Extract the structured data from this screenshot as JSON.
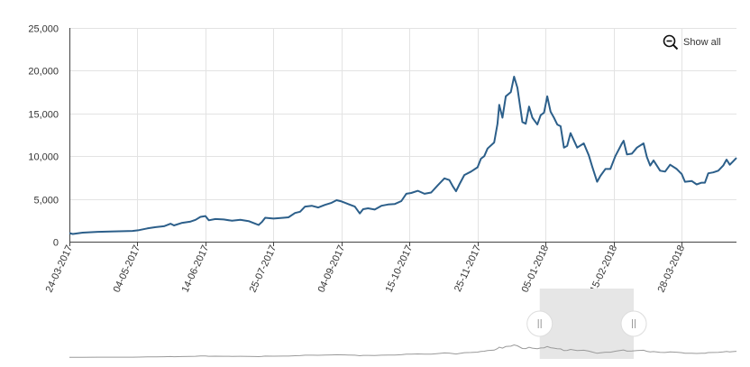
{
  "toolbar": {
    "show_all_label": "Show all"
  },
  "navigator": {
    "selection_start": 0.705,
    "selection_end": 0.846
  },
  "colors": {
    "line": "#2c5f8a",
    "grid": "#e3e3e3",
    "axis": "#444444",
    "navigator_line": "#9a9a9a",
    "navigator_selection": "#e6e6e6"
  },
  "chart_data": {
    "type": "line",
    "title": "",
    "xlabel": "",
    "ylabel": "",
    "ylim": [
      0,
      25000
    ],
    "xlim": [
      "2017-03-24",
      "2018-04-30"
    ],
    "y_ticks": [
      0,
      5000,
      10000,
      15000,
      20000,
      25000
    ],
    "y_tick_labels": [
      "0",
      "5,000",
      "10,000",
      "15,000",
      "20,000",
      "25,000"
    ],
    "x_ticks": [
      "2017-03-24",
      "2017-05-04",
      "2017-06-14",
      "2017-07-25",
      "2017-09-04",
      "2017-10-15",
      "2017-11-25",
      "2018-01-05",
      "2018-02-15",
      "2018-03-28"
    ],
    "x_tick_labels": [
      "24-03-2017",
      "04-05-2017",
      "14-06-2017",
      "25-07-2017",
      "04-09-2017",
      "15-10-2017",
      "25-11-2017",
      "05-01-2018",
      "15-02-2018",
      "28-03-2018"
    ],
    "grid": true,
    "legend": "none",
    "series": [
      {
        "points": [
          [
            "2017-03-24",
            1000
          ],
          [
            "2017-03-26",
            900
          ],
          [
            "2017-04-01",
            1050
          ],
          [
            "2017-04-10",
            1150
          ],
          [
            "2017-04-20",
            1200
          ],
          [
            "2017-05-01",
            1250
          ],
          [
            "2017-05-05",
            1350
          ],
          [
            "2017-05-10",
            1550
          ],
          [
            "2017-05-15",
            1700
          ],
          [
            "2017-05-20",
            1800
          ],
          [
            "2017-05-24",
            2100
          ],
          [
            "2017-05-26",
            1900
          ],
          [
            "2017-05-31",
            2200
          ],
          [
            "2017-06-05",
            2350
          ],
          [
            "2017-06-08",
            2550
          ],
          [
            "2017-06-11",
            2900
          ],
          [
            "2017-06-14",
            3000
          ],
          [
            "2017-06-16",
            2500
          ],
          [
            "2017-06-20",
            2650
          ],
          [
            "2017-06-25",
            2600
          ],
          [
            "2017-06-30",
            2450
          ],
          [
            "2017-07-05",
            2550
          ],
          [
            "2017-07-10",
            2400
          ],
          [
            "2017-07-14",
            2100
          ],
          [
            "2017-07-16",
            1950
          ],
          [
            "2017-07-18",
            2300
          ],
          [
            "2017-07-20",
            2800
          ],
          [
            "2017-07-25",
            2700
          ],
          [
            "2017-07-31",
            2800
          ],
          [
            "2017-08-03",
            2850
          ],
          [
            "2017-08-07",
            3350
          ],
          [
            "2017-08-10",
            3500
          ],
          [
            "2017-08-13",
            4100
          ],
          [
            "2017-08-17",
            4200
          ],
          [
            "2017-08-21",
            4000
          ],
          [
            "2017-08-25",
            4300
          ],
          [
            "2017-08-29",
            4550
          ],
          [
            "2017-09-01",
            4850
          ],
          [
            "2017-09-04",
            4700
          ],
          [
            "2017-09-08",
            4400
          ],
          [
            "2017-09-12",
            4100
          ],
          [
            "2017-09-15",
            3300
          ],
          [
            "2017-09-17",
            3800
          ],
          [
            "2017-09-20",
            3900
          ],
          [
            "2017-09-24",
            3750
          ],
          [
            "2017-09-28",
            4200
          ],
          [
            "2017-10-02",
            4350
          ],
          [
            "2017-10-06",
            4400
          ],
          [
            "2017-10-10",
            4750
          ],
          [
            "2017-10-13",
            5600
          ],
          [
            "2017-10-16",
            5700
          ],
          [
            "2017-10-20",
            5950
          ],
          [
            "2017-10-24",
            5600
          ],
          [
            "2017-10-28",
            5750
          ],
          [
            "2017-11-01",
            6600
          ],
          [
            "2017-11-05",
            7400
          ],
          [
            "2017-11-08",
            7200
          ],
          [
            "2017-11-10",
            6500
          ],
          [
            "2017-11-12",
            5900
          ],
          [
            "2017-11-14",
            6700
          ],
          [
            "2017-11-17",
            7800
          ],
          [
            "2017-11-21",
            8200
          ],
          [
            "2017-11-25",
            8700
          ],
          [
            "2017-11-27",
            9700
          ],
          [
            "2017-11-29",
            10000
          ],
          [
            "2017-12-01",
            10900
          ],
          [
            "2017-12-05",
            11600
          ],
          [
            "2017-12-07",
            13800
          ],
          [
            "2017-12-08",
            16000
          ],
          [
            "2017-12-10",
            14500
          ],
          [
            "2017-12-12",
            17000
          ],
          [
            "2017-12-15",
            17500
          ],
          [
            "2017-12-17",
            19300
          ],
          [
            "2017-12-19",
            18000
          ],
          [
            "2017-12-22",
            14000
          ],
          [
            "2017-12-24",
            13800
          ],
          [
            "2017-12-26",
            15800
          ],
          [
            "2017-12-28",
            14500
          ],
          [
            "2017-12-31",
            13700
          ],
          [
            "2018-01-02",
            14800
          ],
          [
            "2018-01-04",
            15100
          ],
          [
            "2018-01-06",
            17000
          ],
          [
            "2018-01-08",
            15200
          ],
          [
            "2018-01-10",
            14500
          ],
          [
            "2018-01-12",
            13700
          ],
          [
            "2018-01-14",
            13500
          ],
          [
            "2018-01-16",
            11000
          ],
          [
            "2018-01-18",
            11200
          ],
          [
            "2018-01-20",
            12700
          ],
          [
            "2018-01-24",
            11000
          ],
          [
            "2018-01-28",
            11500
          ],
          [
            "2018-01-31",
            10100
          ],
          [
            "2018-02-02",
            8800
          ],
          [
            "2018-02-05",
            7000
          ],
          [
            "2018-02-07",
            7700
          ],
          [
            "2018-02-10",
            8500
          ],
          [
            "2018-02-13",
            8500
          ],
          [
            "2018-02-16",
            10000
          ],
          [
            "2018-02-20",
            11500
          ],
          [
            "2018-02-21",
            11800
          ],
          [
            "2018-02-23",
            10200
          ],
          [
            "2018-02-26",
            10300
          ],
          [
            "2018-03-01",
            11000
          ],
          [
            "2018-03-05",
            11500
          ],
          [
            "2018-03-07",
            9900
          ],
          [
            "2018-03-09",
            8900
          ],
          [
            "2018-03-11",
            9500
          ],
          [
            "2018-03-15",
            8300
          ],
          [
            "2018-03-18",
            8200
          ],
          [
            "2018-03-21",
            9000
          ],
          [
            "2018-03-25",
            8500
          ],
          [
            "2018-03-28",
            7900
          ],
          [
            "2018-03-30",
            7000
          ],
          [
            "2018-04-03",
            7100
          ],
          [
            "2018-04-06",
            6700
          ],
          [
            "2018-04-09",
            6900
          ],
          [
            "2018-04-11",
            6900
          ],
          [
            "2018-04-13",
            8000
          ],
          [
            "2018-04-16",
            8100
          ],
          [
            "2018-04-19",
            8300
          ],
          [
            "2018-04-22",
            8900
          ],
          [
            "2018-04-24",
            9600
          ],
          [
            "2018-04-26",
            9000
          ],
          [
            "2018-04-28",
            9400
          ],
          [
            "2018-04-30",
            9800
          ]
        ]
      }
    ]
  }
}
